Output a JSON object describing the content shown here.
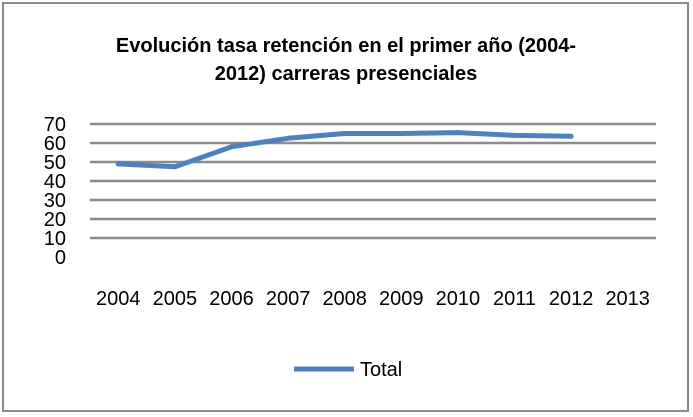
{
  "chart_data": {
    "type": "line",
    "title_lines": [
      "Evolución tasa retención en el primer año (2004-",
      "2012) carreras presenciales"
    ],
    "categories": [
      "2004",
      "2005",
      "2006",
      "2007",
      "2008",
      "2009",
      "2010",
      "2011",
      "2012",
      "2013"
    ],
    "y_ticks": [
      "70",
      "60",
      "50",
      "40",
      "30",
      "20",
      "10",
      "0"
    ],
    "ylim": [
      0,
      70
    ],
    "grid": true,
    "legend_position": "bottom",
    "series": [
      {
        "name": "Total",
        "color": "#4f81bd",
        "values": [
          49,
          47.5,
          58,
          62.5,
          65,
          65,
          65.5,
          64,
          63.5,
          null
        ]
      }
    ]
  }
}
